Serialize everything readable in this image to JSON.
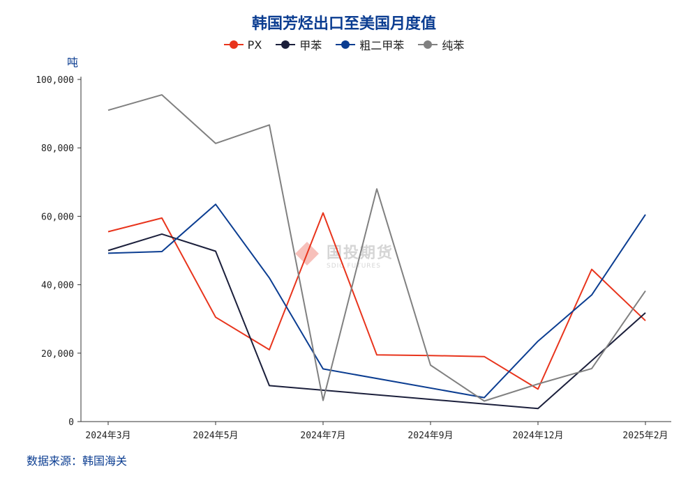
{
  "chart_data": {
    "type": "line",
    "title": "韩国芳烃出口至美国月度值",
    "ylabel": "吨",
    "ylim": [
      0,
      100000
    ],
    "yticks": [
      "0",
      "20,000",
      "40,000",
      "60,000",
      "80,000",
      "100,000"
    ],
    "ytick_values": [
      0,
      20000,
      40000,
      60000,
      80000,
      100000
    ],
    "x": [
      "2024年3月",
      "2024年4月",
      "2024年5月",
      "2024年6月",
      "2024年7月",
      "2024年8月",
      "2024年9月",
      "2024年10月",
      "2024年12月",
      "2025年1月",
      "2025年2月"
    ],
    "xtick_labels": [
      "2024年3月",
      "",
      "2024年5月",
      "",
      "2024年7月",
      "",
      "2024年9月",
      "",
      "2024年12月",
      "",
      "2025年2月"
    ],
    "legend_position": "top-center",
    "series": [
      {
        "name": "PX",
        "color": "#e8341c",
        "values": [
          55500,
          59500,
          30500,
          21000,
          61000,
          19500,
          19300,
          19000,
          9500,
          44500,
          29500
        ]
      },
      {
        "name": "甲苯",
        "color": "#1b1f3b",
        "values": [
          50000,
          54800,
          49800,
          10500,
          null,
          null,
          null,
          null,
          3800,
          null,
          31800
        ]
      },
      {
        "name": "粗二甲苯",
        "color": "#0b3d91",
        "values": [
          49200,
          49700,
          63500,
          42000,
          15400,
          null,
          null,
          7000,
          23500,
          37000,
          60500
        ]
      },
      {
        "name": "纯苯",
        "color": "#808080",
        "values": [
          91000,
          95500,
          81300,
          86700,
          6200,
          68000,
          16500,
          6000,
          11000,
          15500,
          38200
        ]
      }
    ]
  },
  "source": "数据来源：韩国海关",
  "watermark": {
    "main": "国投期货",
    "sub": "SDIC FUTURES"
  }
}
